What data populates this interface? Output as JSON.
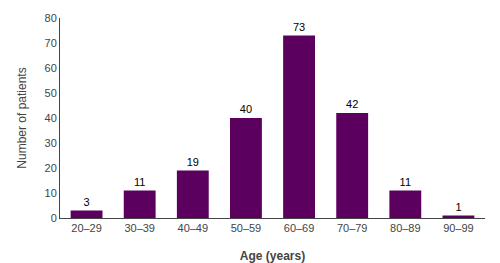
{
  "chart_data": {
    "type": "bar",
    "categories": [
      "20–29",
      "30–39",
      "40–49",
      "50–59",
      "60–69",
      "70–79",
      "80–89",
      "90–99"
    ],
    "values": [
      3,
      11,
      19,
      40,
      73,
      42,
      11,
      1
    ],
    "color": "#5c0060",
    "xlabel": "Age (years)",
    "ylabel": "Number of patients",
    "ylim": [
      0,
      80
    ],
    "yticks": [
      0,
      10,
      20,
      30,
      40,
      50,
      60,
      70,
      80
    ],
    "grid": false,
    "data_labels": true
  }
}
